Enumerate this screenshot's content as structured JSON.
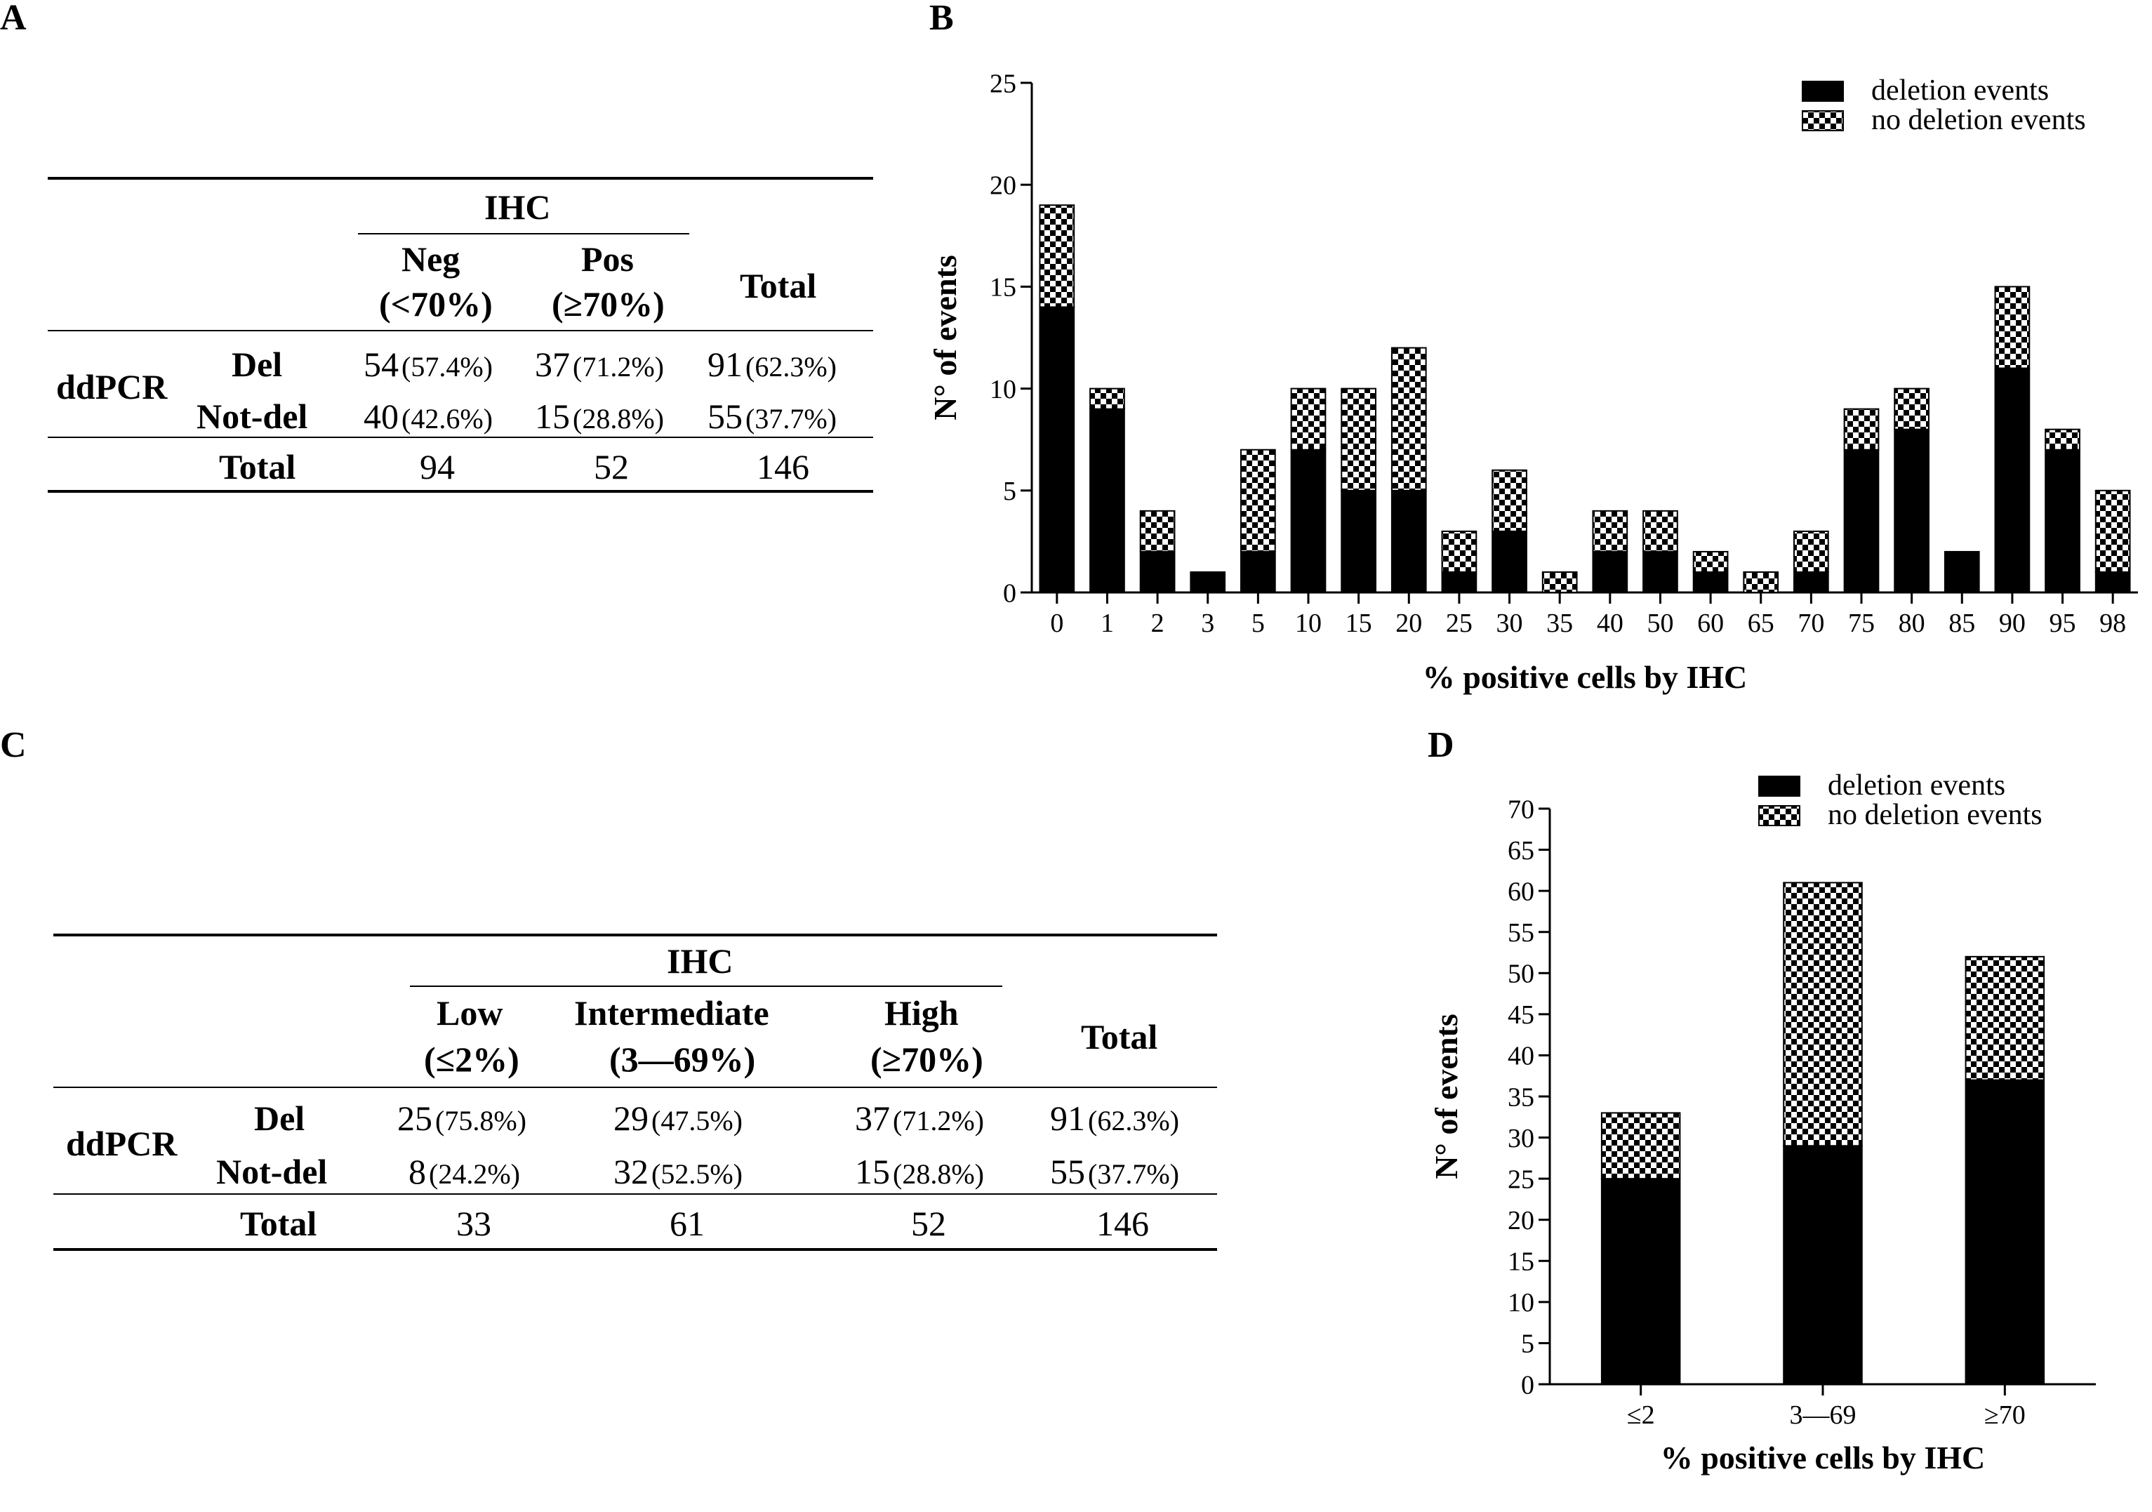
{
  "panels": {
    "a": "A",
    "b": "B",
    "c": "C",
    "d": "D"
  },
  "colors": {
    "ink": "#000000",
    "background": "#ffffff"
  },
  "table_a": {
    "header": "IHC",
    "cols": [
      {
        "line1": "Neg",
        "line2": "(<70%)"
      },
      {
        "line1": "Pos",
        "line2": "(≥70%)"
      }
    ],
    "total_col": "Total",
    "row_group": "ddPCR",
    "rows": [
      {
        "label": "Del",
        "cells": [
          {
            "n": "54",
            "p": "(57.4%)"
          },
          {
            "n": "37",
            "p": "(71.2%)"
          },
          {
            "n": "91",
            "p": "(62.3%)"
          }
        ]
      },
      {
        "label": "Not-del",
        "cells": [
          {
            "n": "40",
            "p": "(42.6%)"
          },
          {
            "n": "15",
            "p": "(28.8%)"
          },
          {
            "n": "55",
            "p": "(37.7%)"
          }
        ]
      }
    ],
    "total_row": {
      "label": "Total",
      "values": [
        "94",
        "52",
        "146"
      ]
    }
  },
  "table_c": {
    "header": "IHC",
    "cols": [
      {
        "line1": "Low",
        "line2": "(≤2%)"
      },
      {
        "line1": "Intermediate",
        "line2": "(3—69%)"
      },
      {
        "line1": "High",
        "line2": "(≥70%)"
      }
    ],
    "total_col": "Total",
    "row_group": "ddPCR",
    "rows": [
      {
        "label": "Del",
        "cells": [
          {
            "n": "25",
            "p": "(75.8%)"
          },
          {
            "n": "29",
            "p": "(47.5%)"
          },
          {
            "n": "37",
            "p": "(71.2%)"
          },
          {
            "n": "91",
            "p": "(62.3%)"
          }
        ]
      },
      {
        "label": "Not-del",
        "cells": [
          {
            "n": "8",
            "p": "(24.2%)"
          },
          {
            "n": "32",
            "p": "(52.5%)"
          },
          {
            "n": "15",
            "p": "(28.8%)"
          },
          {
            "n": "55",
            "p": "(37.7%)"
          }
        ]
      }
    ],
    "total_row": {
      "label": "Total",
      "values": [
        "33",
        "61",
        "52",
        "146"
      ]
    }
  },
  "chart_data": [
    {
      "id": "B",
      "type": "bar",
      "stacked": true,
      "xlabel": "% positive cells by IHC",
      "ylabel": "N° of events",
      "ylim": [
        0,
        25
      ],
      "yticks": [
        0,
        5,
        10,
        15,
        20,
        25
      ],
      "legend": "top-right",
      "categories": [
        "0",
        "1",
        "2",
        "3",
        "5",
        "10",
        "15",
        "20",
        "25",
        "30",
        "35",
        "40",
        "50",
        "60",
        "65",
        "70",
        "75",
        "80",
        "85",
        "90",
        "95",
        "98"
      ],
      "series": [
        {
          "name": "deletion events",
          "values": [
            14,
            9,
            2,
            1,
            2,
            7,
            5,
            5,
            1,
            3,
            0,
            2,
            2,
            1,
            0,
            1,
            7,
            8,
            2,
            11,
            7,
            1
          ]
        },
        {
          "name": "no deletion events",
          "values": [
            5,
            1,
            2,
            0,
            5,
            3,
            5,
            7,
            2,
            3,
            1,
            2,
            2,
            1,
            1,
            2,
            2,
            2,
            0,
            4,
            1,
            4
          ]
        }
      ]
    },
    {
      "id": "D",
      "type": "bar",
      "stacked": true,
      "xlabel": "% positive cells by IHC",
      "ylabel": "N° of events",
      "ylim": [
        0,
        70
      ],
      "yticks": [
        0,
        5,
        10,
        15,
        20,
        25,
        30,
        35,
        40,
        45,
        50,
        55,
        60,
        65,
        70
      ],
      "legend": "top-right",
      "categories": [
        "≤2",
        "3—69",
        "≥70"
      ],
      "series": [
        {
          "name": "deletion events",
          "values": [
            25,
            29,
            37
          ]
        },
        {
          "name": "no deletion events",
          "values": [
            8,
            32,
            15
          ]
        }
      ]
    }
  ]
}
